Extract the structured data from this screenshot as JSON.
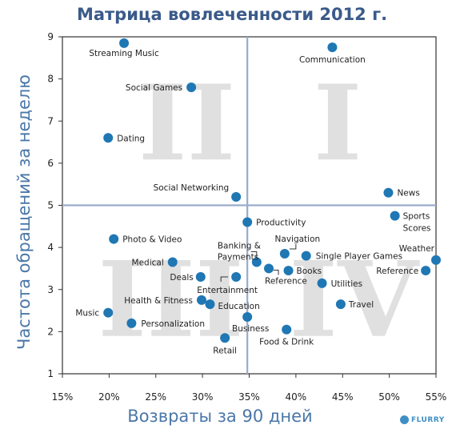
{
  "colors": {
    "title": "#3a5a8a",
    "axis_label": "#4a77a8",
    "point": "#1f77b4",
    "divider": "#9aaccc",
    "quadrant_numeral": "#c8c8c8"
  },
  "brand": {
    "logo_text": "FLURRY"
  },
  "chart_data": {
    "type": "scatter",
    "title": "Матрица вовлеченности 2012 г.",
    "xlabel": "Возвраты за  90 дней",
    "ylabel": "Частота обращений за неделю",
    "xlim": [
      15,
      55
    ],
    "ylim": [
      1,
      9
    ],
    "x_ticks": [
      {
        "value": 15,
        "label": "15%"
      },
      {
        "value": 20,
        "label": "20%"
      },
      {
        "value": 25,
        "label": "25%"
      },
      {
        "value": 30,
        "label": "30%"
      },
      {
        "value": 35,
        "label": "35%"
      },
      {
        "value": 40,
        "label": "40%"
      },
      {
        "value": 45,
        "label": "45%"
      },
      {
        "value": 50,
        "label": "50%"
      },
      {
        "value": 55,
        "label": "55%"
      }
    ],
    "y_ticks": [
      {
        "value": 1,
        "label": "1"
      },
      {
        "value": 2,
        "label": "2"
      },
      {
        "value": 3,
        "label": "3"
      },
      {
        "value": 4,
        "label": "4"
      },
      {
        "value": 5,
        "label": "5"
      },
      {
        "value": 6,
        "label": "6"
      },
      {
        "value": 7,
        "label": "7"
      },
      {
        "value": 8,
        "label": "8"
      },
      {
        "value": 9,
        "label": "9"
      }
    ],
    "dividers": {
      "x": 34.8,
      "y": 5.0
    },
    "grid": false,
    "quadrant_numerals": [
      {
        "text": "II",
        "quadrant": "top-left"
      },
      {
        "text": "I",
        "quadrant": "top-right"
      },
      {
        "text": "III",
        "quadrant": "bottom-left"
      },
      {
        "text": "IV",
        "quadrant": "bottom-right"
      }
    ],
    "points": [
      {
        "label": "Streaming Music",
        "x": 21.6,
        "y": 8.85
      },
      {
        "label": "Communication",
        "x": 43.9,
        "y": 8.75
      },
      {
        "label": "Social Games",
        "x": 28.8,
        "y": 7.8
      },
      {
        "label": "Dating",
        "x": 19.9,
        "y": 6.6
      },
      {
        "label": "Social Networking",
        "x": 33.6,
        "y": 5.2
      },
      {
        "label": "News",
        "x": 49.9,
        "y": 5.3
      },
      {
        "label": "Sports Scores",
        "x": 50.6,
        "y": 4.75
      },
      {
        "label": "Productivity",
        "x": 34.8,
        "y": 4.6
      },
      {
        "label": "Photo & Video",
        "x": 20.5,
        "y": 4.2
      },
      {
        "label": "Navigation",
        "x": 38.8,
        "y": 3.85
      },
      {
        "label": "Banking & Payments",
        "x": 35.8,
        "y": 3.65
      },
      {
        "label": "Single Player Games",
        "x": 41.1,
        "y": 3.8
      },
      {
        "label": "Weather",
        "x": 55.0,
        "y": 3.7
      },
      {
        "label": "Medical",
        "x": 26.8,
        "y": 3.65
      },
      {
        "label": "Books",
        "x": 39.2,
        "y": 3.45
      },
      {
        "label": "Reference",
        "x": 37.1,
        "y": 3.5
      },
      {
        "label": "Reference",
        "x": 53.9,
        "y": 3.45
      },
      {
        "label": "Deals",
        "x": 29.8,
        "y": 3.3
      },
      {
        "label": "Entertainment",
        "x": 33.6,
        "y": 3.3
      },
      {
        "label": "Utilities",
        "x": 42.8,
        "y": 3.15
      },
      {
        "label": "Health & Fitness",
        "x": 29.9,
        "y": 2.75
      },
      {
        "label": "Education",
        "x": 30.8,
        "y": 2.65
      },
      {
        "label": "Travel",
        "x": 44.8,
        "y": 2.65
      },
      {
        "label": "Music",
        "x": 19.9,
        "y": 2.45
      },
      {
        "label": "Business",
        "x": 34.8,
        "y": 2.35
      },
      {
        "label": "Personalization",
        "x": 22.4,
        "y": 2.2
      },
      {
        "label": "Food & Drink",
        "x": 39.0,
        "y": 2.05
      },
      {
        "label": "Retail",
        "x": 32.4,
        "y": 1.85
      }
    ]
  }
}
